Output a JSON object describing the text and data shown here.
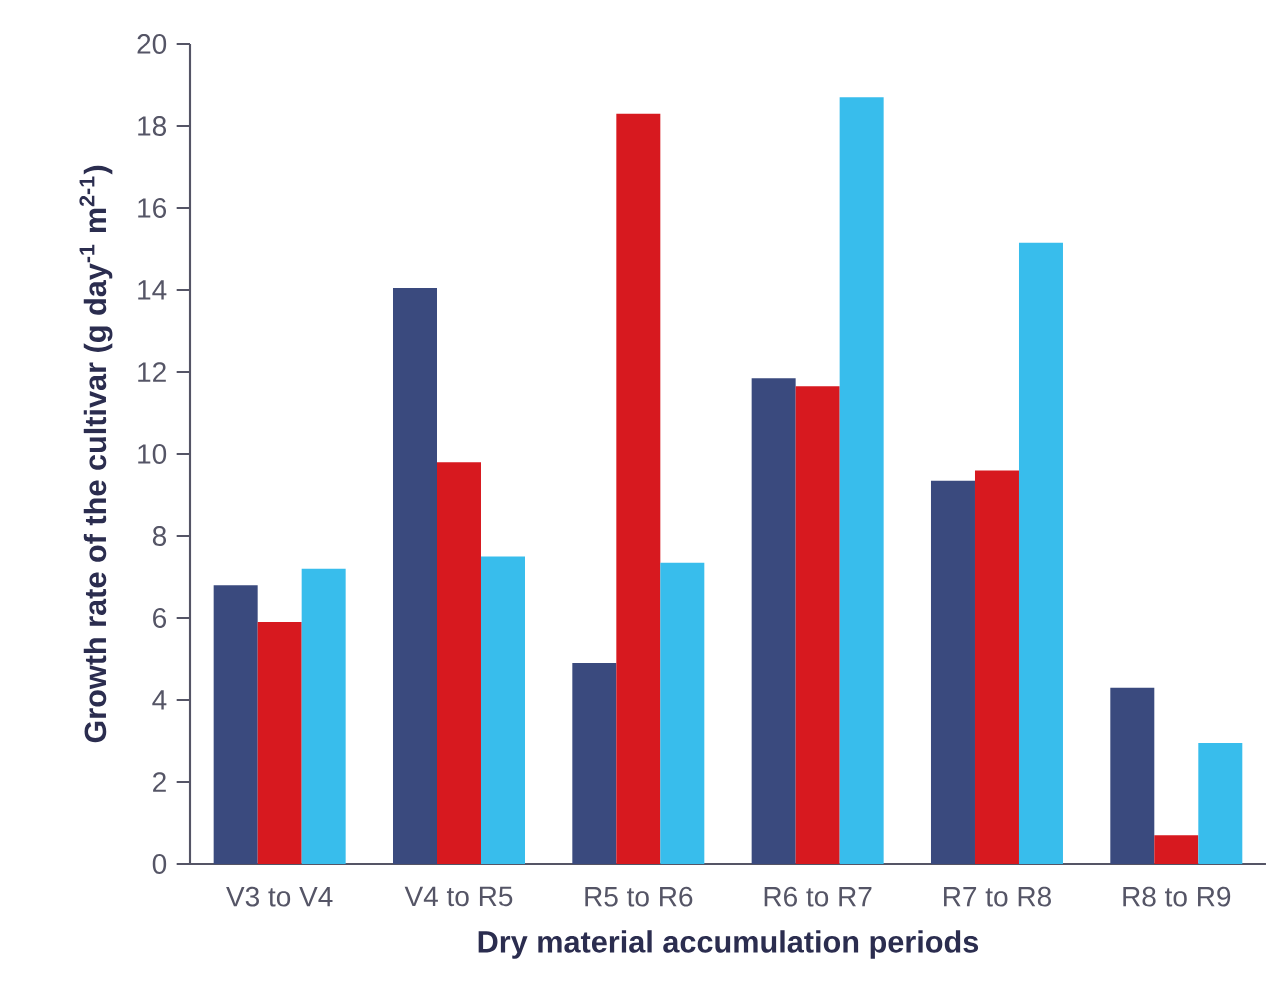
{
  "chart_data": {
    "type": "bar",
    "xlabel": "Dry material accumulation periods",
    "ylabel": "Growth rate of the cultivar (g day$^{-1}$ m$^{2-1}$)",
    "categories": [
      "V3 to V4",
      "V4 to R5",
      "R5 to R6",
      "R6 to R7",
      "R7 to R8",
      "R8 to R9"
    ],
    "series": [
      {
        "color": "#3a4a7e",
        "values": [
          6.8,
          14.05,
          4.9,
          11.85,
          9.35,
          4.3
        ]
      },
      {
        "color": "#d7191f",
        "values": [
          5.9,
          9.8,
          18.3,
          11.65,
          9.6,
          0.7
        ]
      },
      {
        "color": "#38bdec",
        "values": [
          7.2,
          7.5,
          7.35,
          18.7,
          15.15,
          2.95
        ]
      }
    ],
    "ylim": [
      0,
      20
    ],
    "yticks": [
      0,
      2,
      4,
      6,
      8,
      10,
      12,
      14,
      16,
      18,
      20
    ],
    "grid": false
  }
}
